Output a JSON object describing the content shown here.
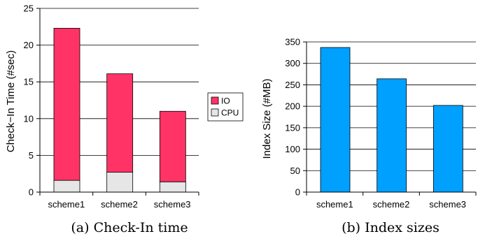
{
  "chart_data": [
    {
      "type": "bar",
      "stacked": true,
      "categories": [
        "scheme1",
        "scheme2",
        "scheme3"
      ],
      "series": [
        {
          "name": "CPU",
          "values": [
            1.6,
            2.7,
            1.4
          ],
          "color": "#e6e6e6"
        },
        {
          "name": "IO",
          "values": [
            20.7,
            13.4,
            9.6
          ],
          "color": "#ff3366"
        }
      ],
      "ylabel": "Check−In Time (#sec)",
      "ylim": [
        0,
        25
      ],
      "yticks": [
        0,
        5,
        10,
        15,
        20,
        25
      ],
      "grid": true,
      "legend": "right",
      "caption": "(a) Check-In time"
    },
    {
      "type": "bar",
      "categories": [
        "scheme1",
        "scheme2",
        "scheme3"
      ],
      "values": [
        337,
        264,
        202
      ],
      "color": "#00a0ff",
      "ylabel": "Index Size (#MB)",
      "ylim": [
        0,
        350
      ],
      "yticks": [
        0,
        50,
        100,
        150,
        200,
        250,
        300,
        350
      ],
      "grid": true,
      "caption": "(b) Index sizes"
    }
  ]
}
